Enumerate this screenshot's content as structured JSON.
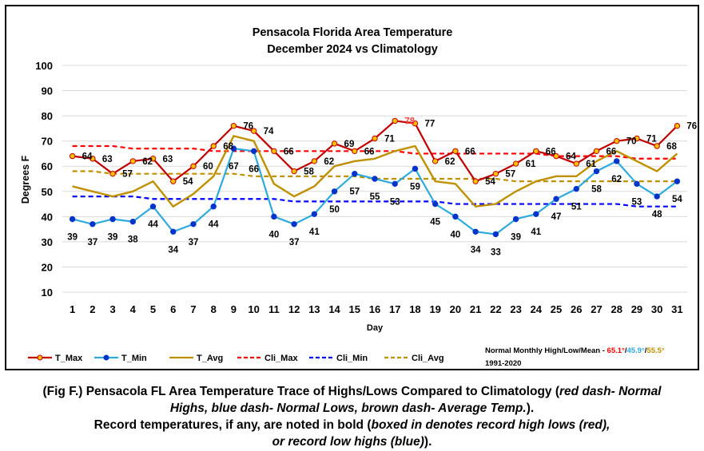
{
  "chart_data": {
    "type": "line",
    "title": "Pensacola Florida Area Temperature",
    "subtitle": "December 2024 vs Climatology",
    "xlabel": "Day",
    "ylabel": "Degrees F",
    "ylim": [
      10,
      100
    ],
    "yticks": [
      "10",
      "20",
      "30",
      "40",
      "50",
      "60",
      "70",
      "80",
      "90",
      "100"
    ],
    "x": [
      1,
      2,
      3,
      4,
      5,
      6,
      7,
      8,
      9,
      10,
      11,
      12,
      13,
      14,
      15,
      16,
      17,
      18,
      19,
      20,
      21,
      22,
      23,
      24,
      25,
      26,
      27,
      28,
      29,
      30,
      31
    ],
    "grid": true,
    "legend_position": "bottom",
    "series": [
      {
        "name": "T_Max",
        "color": "#c00000",
        "values": [
          64,
          63,
          57,
          62,
          63,
          54,
          60,
          68,
          76,
          74,
          66,
          58,
          62,
          69,
          66,
          71,
          78,
          77,
          62,
          66,
          54,
          57,
          61,
          66,
          64,
          61,
          66,
          70,
          71,
          68,
          76
        ]
      },
      {
        "name": "T_Min",
        "color": "#2eaadc",
        "values": [
          39,
          37,
          39,
          38,
          44,
          34,
          37,
          44,
          67,
          66,
          40,
          37,
          41,
          50,
          57,
          55,
          53,
          59,
          45,
          40,
          34,
          33,
          39,
          41,
          47,
          51,
          58,
          62,
          53,
          48,
          54
        ]
      },
      {
        "name": "T_Avg",
        "color": "#bf9000",
        "values": [
          52,
          50,
          48,
          50,
          54,
          44,
          49,
          56,
          72,
          70,
          53,
          48,
          52,
          60,
          62,
          63,
          66,
          68,
          54,
          53,
          44,
          45,
          50,
          54,
          56,
          56,
          62,
          66,
          62,
          58,
          65
        ]
      },
      {
        "name": "Cli_Max",
        "color": "#ff0000",
        "values": [
          68,
          68,
          68,
          67,
          67,
          67,
          67,
          66,
          66,
          66,
          66,
          66,
          66,
          66,
          66,
          66,
          66,
          65,
          65,
          65,
          65,
          65,
          65,
          65,
          64,
          64,
          64,
          64,
          63,
          63,
          63
        ]
      },
      {
        "name": "Cli_Min",
        "color": "#0000ff",
        "values": [
          48,
          48,
          48,
          48,
          47,
          47,
          47,
          47,
          47,
          47,
          47,
          46,
          46,
          46,
          46,
          46,
          46,
          46,
          46,
          45,
          45,
          45,
          45,
          45,
          45,
          45,
          45,
          45,
          44,
          44,
          44
        ]
      },
      {
        "name": "Cli_Avg",
        "color": "#bf9000",
        "values": [
          58,
          58,
          57,
          57,
          57,
          57,
          57,
          57,
          57,
          56,
          56,
          56,
          56,
          56,
          56,
          55,
          55,
          55,
          55,
          55,
          55,
          55,
          54,
          54,
          54,
          54,
          54,
          54,
          54,
          54,
          54
        ]
      }
    ],
    "max_labels": [
      "64",
      "63",
      "57",
      "62",
      "63",
      "54",
      "60",
      "68",
      "76",
      "74",
      "66",
      "58",
      "62",
      "69",
      "66",
      "71",
      "78",
      "77",
      "62",
      "66",
      "54",
      "57",
      "61",
      "66",
      "64",
      "61",
      "66",
      "70",
      "71",
      "68",
      "76"
    ],
    "min_labels": [
      "39",
      "37",
      "39",
      "38",
      "44",
      "34",
      "37",
      "44",
      "67",
      "66",
      "40",
      "37",
      "41",
      "50",
      "57",
      "55",
      "53",
      "59",
      "45",
      "40",
      "34",
      "33",
      "39",
      "41",
      "47",
      "51",
      "58",
      "62",
      "53",
      "48",
      "54"
    ],
    "highlight_label": {
      "day": 17,
      "series": "T_Max",
      "color": "#ff4040"
    }
  },
  "legend": {
    "items": [
      "T_Max",
      "T_Min",
      "T_Avg",
      "Cli_Max",
      "Cli_Min",
      "Cli_Avg"
    ]
  },
  "note": {
    "line1_prefix": "Normal Monthly High/Low/Mean - ",
    "high": "65.1°",
    "sep1": "/",
    "low": "45.9°",
    "sep2": "/",
    "mean": "55.5°",
    "line2": "1991-2020",
    "high_color": "#ff0000",
    "low_color": "#2eaadc",
    "mean_color": "#bf9000"
  },
  "caption": {
    "line1_a": "(Fig F.) Pensacola FL Area Temperature Trace of Highs/Lows Compared to Climatology (",
    "line1_b": "red dash- Normal",
    "line2_b": "Highs, blue dash- Normal Lows, brown dash- Average Temp.",
    "line2_c": ").",
    "line3_a": "Record temperatures, if any, are noted in bold (",
    "line3_b": "boxed in denotes record high lows (red),",
    "line4_b": "or record low highs (blue)",
    "line4_c": ")."
  }
}
